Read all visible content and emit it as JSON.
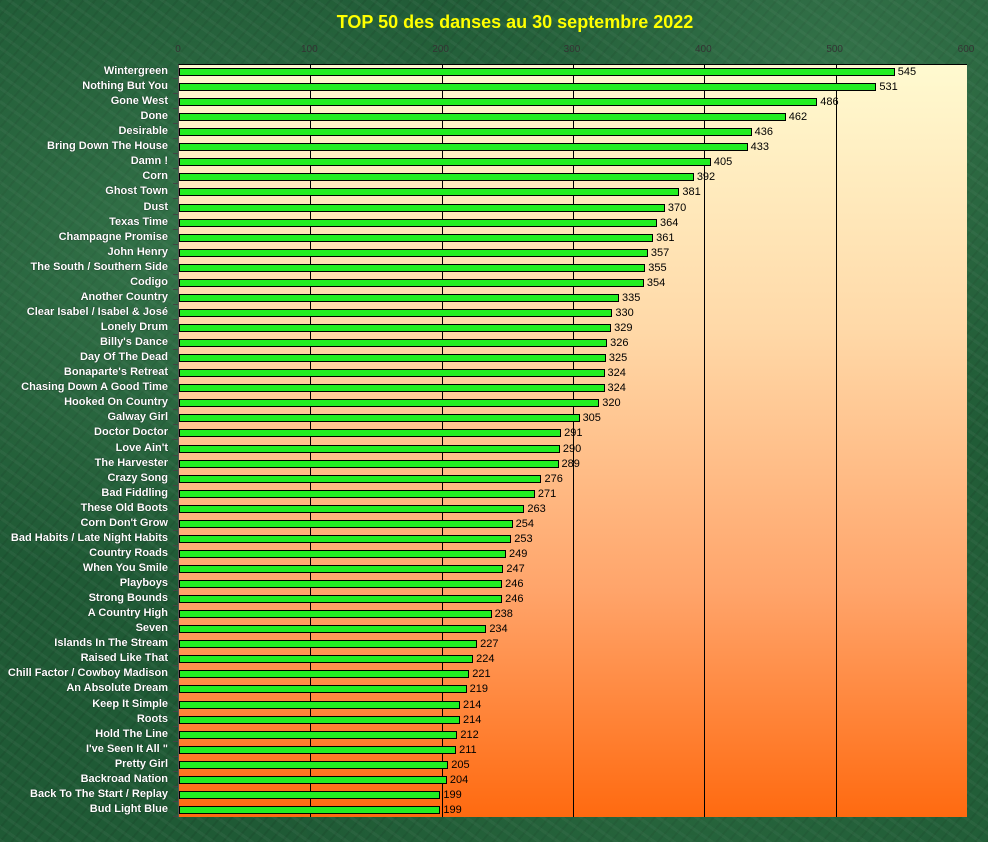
{
  "chart_data": {
    "type": "bar",
    "orientation": "horizontal",
    "title": "TOP 50 des danses au 30 septembre 2022",
    "xlabel": "",
    "ylabel": "",
    "xlim": [
      0,
      600
    ],
    "xticks": [
      0,
      100,
      200,
      300,
      400,
      500,
      600
    ],
    "grid": true,
    "colors": {
      "bar": "#22ee22",
      "title": "#ffff00",
      "plot_top": "#fffad0",
      "plot_bottom": "#ff6a10"
    },
    "categories": [
      "Wintergreen",
      "Nothing But You",
      "Gone West",
      "Done",
      "Desirable",
      "Bring Down The House",
      "Damn !",
      "Corn",
      "Ghost Town",
      "Dust",
      "Texas Time",
      "Champagne Promise",
      "John Henry",
      "The South  / Southern Side",
      "Codigo",
      "Another Country",
      "Clear Isabel / Isabel & José",
      "Lonely Drum",
      "Billy's Dance",
      "Day Of The Dead",
      "Bonaparte's Retreat",
      "Chasing Down A Good Time",
      "Hooked On Country",
      "Galway Girl",
      "Doctor Doctor",
      "Love Ain't",
      "The Harvester",
      "Crazy Song",
      "Bad Fiddling",
      "These Old Boots",
      "Corn Don't Grow",
      "Bad Habits / Late Night Habits",
      "Country Roads",
      "When You Smile",
      "Playboys",
      "Strong Bounds",
      "A Country High",
      "Seven",
      "Islands In The Stream",
      "Raised Like That",
      "Chill Factor / Cowboy Madison",
      "An Absolute Dream",
      "Keep It Simple",
      "Roots",
      "Hold The Line",
      "I've Seen It All \"",
      "Pretty Girl",
      "Backroad Nation",
      "Back To The Start / Replay",
      "Bud Light Blue"
    ],
    "values": [
      545,
      531,
      486,
      462,
      436,
      433,
      405,
      392,
      381,
      370,
      364,
      361,
      357,
      355,
      354,
      335,
      330,
      329,
      326,
      325,
      324,
      324,
      320,
      305,
      291,
      290,
      289,
      276,
      271,
      263,
      254,
      253,
      249,
      247,
      246,
      246,
      238,
      234,
      227,
      224,
      221,
      219,
      214,
      214,
      212,
      211,
      205,
      204,
      199,
      199
    ]
  }
}
